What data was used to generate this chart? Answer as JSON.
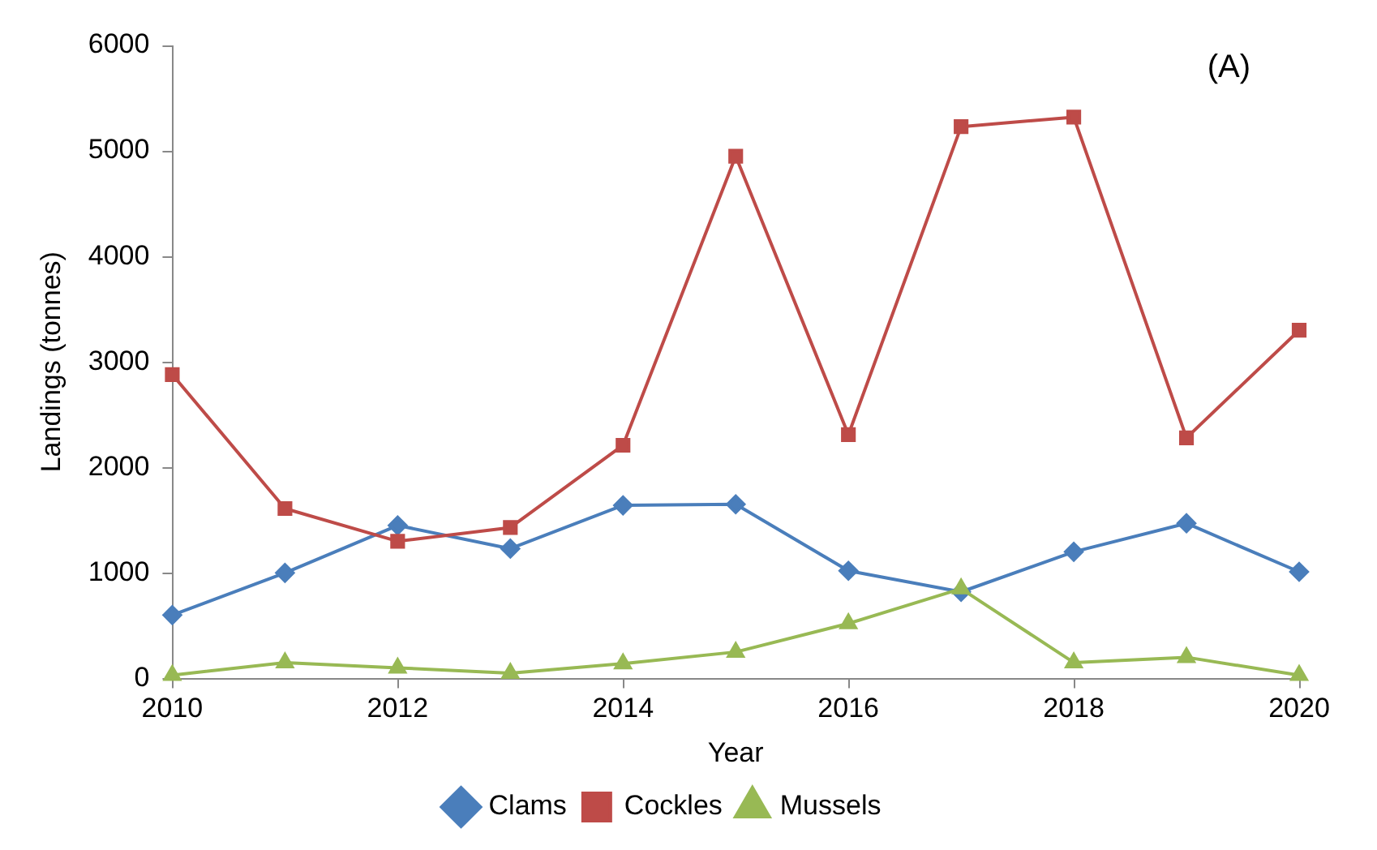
{
  "chart_data": {
    "type": "line",
    "xlabel": "Year",
    "ylabel": "Landings (tonnes)",
    "annotations": [
      "(A)"
    ],
    "x": [
      2010,
      2011,
      2012,
      2013,
      2014,
      2015,
      2016,
      2017,
      2018,
      2019,
      2020
    ],
    "xlim": [
      2010,
      2020
    ],
    "xticks": [
      2010,
      2012,
      2014,
      2016,
      2018,
      2020
    ],
    "ylim": [
      0,
      6000
    ],
    "yticks": [
      0,
      1000,
      2000,
      3000,
      4000,
      5000,
      6000
    ],
    "grid": false,
    "legend": "bottom",
    "line_style": "solid",
    "series": [
      {
        "name": "Clams",
        "color": "#4a7ebb",
        "marker": "diamond",
        "values": [
          600,
          1000,
          1450,
          1230,
          1640,
          1650,
          1020,
          820,
          1200,
          1470,
          1010
        ]
      },
      {
        "name": "Cockles",
        "color": "#be4b48",
        "marker": "square",
        "values": [
          2880,
          1610,
          1300,
          1430,
          2210,
          4950,
          2310,
          5230,
          5320,
          2280,
          3300
        ]
      },
      {
        "name": "Mussels",
        "color": "#98b954",
        "marker": "triangle",
        "values": [
          30,
          150,
          100,
          50,
          140,
          250,
          520,
          850,
          150,
          200,
          30
        ]
      }
    ]
  }
}
